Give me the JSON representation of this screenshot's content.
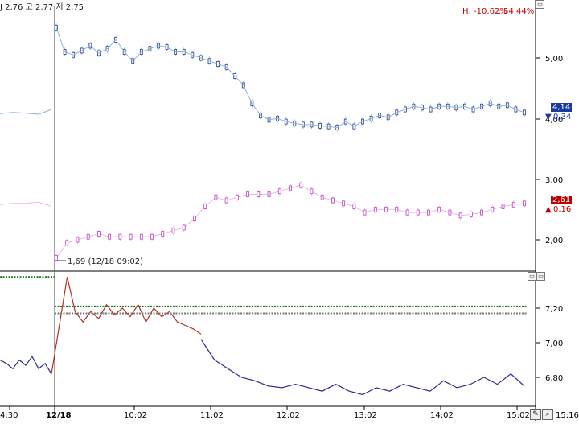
{
  "header": {
    "ohlc_text": "J 2,76 고 2,77 저 2,75",
    "hl_high": "H: -10,62%",
    "hl_low": "L: 54,44%"
  },
  "labels": {
    "blue_price_top": "4,14",
    "blue_price_bottom": "0,34",
    "purple_price_top": "2,61",
    "purple_price_bottom": "0,16",
    "low_annotation": "1,69 (12/18 09:02)"
  },
  "colors": {
    "blue_series": "#8ab4dd",
    "blue_dark": "#2a3a8a",
    "purple_series": "#c040c0",
    "purple_light": "#e8b8e8",
    "red_line": "#b03020",
    "navy_line": "#2a2a8a",
    "green_dots": "#1a7a1a",
    "gray_dots": "#777777",
    "badge_blue": "#1a3aa0",
    "badge_red": "#c00000"
  },
  "toolbar": {
    "buttons": [
      "restore-icon",
      "edit-icon",
      "zoom-icon"
    ]
  },
  "chart_data": [
    {
      "type": "line",
      "title": "",
      "ylabel": "",
      "yticks": [
        "5,00",
        "4,00",
        "3,00",
        "2,00"
      ],
      "ylim": [
        1.6,
        5.65
      ],
      "grid": false,
      "series": [
        {
          "values": [
            4.08,
            4.1,
            4.09,
            4.07,
            4.15,
            5.5,
            5.1,
            5.05,
            5.12,
            5.2,
            5.08,
            5.15,
            5.3,
            5.1,
            4.95,
            5.1,
            5.15,
            5.2,
            5.18,
            5.1,
            5.1,
            5.05,
            5.0,
            4.95,
            4.9,
            4.85,
            4.7,
            4.55,
            4.25,
            4.05,
            3.98,
            4.0,
            3.95,
            3.92,
            3.9,
            3.9,
            3.88,
            3.87,
            3.85,
            3.95,
            3.87,
            3.95,
            4.0,
            4.05,
            4.02,
            4.1,
            4.15,
            4.2,
            4.18,
            4.15,
            4.2,
            4.2,
            4.18,
            4.2,
            4.15,
            4.2,
            4.25,
            4.2,
            4.22,
            4.15,
            4.1
          ]
        },
        {
          "values": [
            2.58,
            2.6,
            2.6,
            2.62,
            2.55,
            1.7,
            1.95,
            2.0,
            2.05,
            2.1,
            2.05,
            2.05,
            2.05,
            2.05,
            2.05,
            2.1,
            2.15,
            2.2,
            2.35,
            2.55,
            2.7,
            2.65,
            2.7,
            2.75,
            2.75,
            2.75,
            2.8,
            2.85,
            2.9,
            2.8,
            2.7,
            2.65,
            2.6,
            2.55,
            2.45,
            2.5,
            2.5,
            2.5,
            2.45,
            2.45,
            2.45,
            2.5,
            2.45,
            2.4,
            2.42,
            2.45,
            2.5,
            2.55,
            2.58,
            2.6
          ]
        }
      ]
    },
    {
      "type": "line",
      "title": "",
      "ylabel": "",
      "xticks": [
        "4:30",
        "12/18",
        "10:02",
        "11:02",
        "12:02",
        "13:02",
        "14:02",
        "15:02",
        "15:16"
      ],
      "yticks": [
        "7,20",
        "7,00",
        "6,80"
      ],
      "ylim": [
        6.65,
        7.45
      ],
      "grid": false,
      "series": [
        {
          "values": [
            6.9,
            6.88,
            6.85,
            6.9,
            6.87,
            6.92,
            6.85,
            6.88,
            6.82,
            7.1,
            7.38,
            7.18,
            7.12,
            7.18,
            7.14,
            7.22,
            7.16,
            7.2,
            7.15,
            7.22,
            7.12,
            7.2,
            7.15,
            7.18,
            7.12,
            7.1,
            7.08,
            7.05
          ]
        },
        {
          "values": [
            7.02,
            6.9,
            6.85,
            6.8,
            6.78,
            6.75,
            6.74,
            6.76,
            6.74,
            6.72,
            6.76,
            6.72,
            6.7,
            6.74,
            6.72,
            6.76,
            6.74,
            6.72,
            6.78,
            6.74,
            6.76,
            6.8,
            6.76,
            6.82,
            6.75
          ]
        },
        {
          "values": [
            7.38,
            7.38,
            7.21,
            7.21
          ]
        },
        {
          "values": [
            7.17,
            7.17
          ]
        }
      ]
    }
  ]
}
